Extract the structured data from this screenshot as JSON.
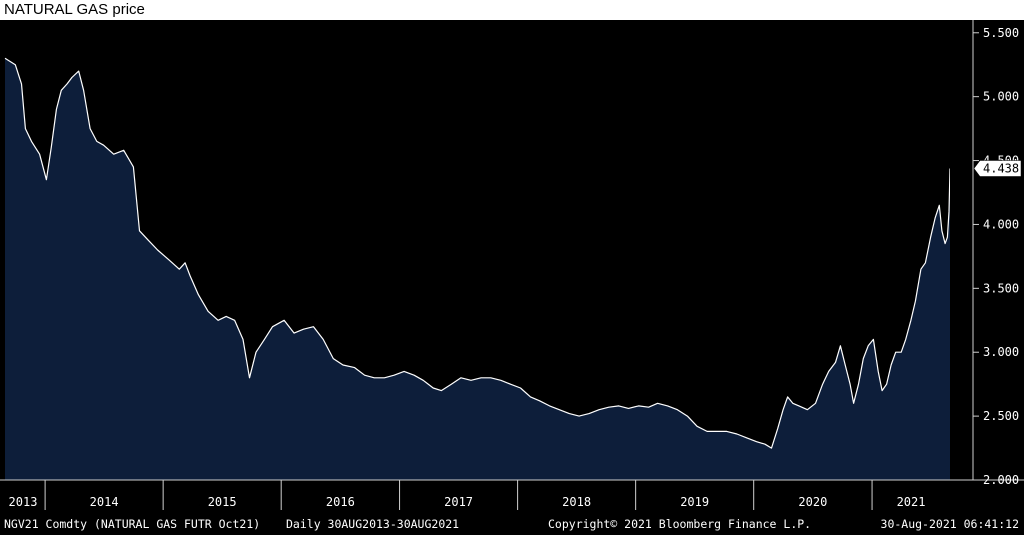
{
  "title": "NATURAL GAS price",
  "chart_data": {
    "type": "area",
    "x_range": [
      "2013-08-30",
      "2021-08-30"
    ],
    "ylim": [
      2.0,
      5.6
    ],
    "grid": false,
    "series_color": "#ffffff",
    "area_color": "#0d1e3a",
    "y_ticks": [
      "2.000",
      "2.500",
      "3.000",
      "3.500",
      "4.000",
      "4.500",
      "5.000",
      "5.500"
    ],
    "x_ticks": [
      "2013",
      "2014",
      "2015",
      "2016",
      "2017",
      "2018",
      "2019",
      "2020",
      "2021"
    ],
    "last_value_label": "4.438",
    "last_value": 4.438,
    "points": [
      [
        "2013-08-30",
        5.3
      ],
      [
        "2013-10-01",
        5.25
      ],
      [
        "2013-10-20",
        5.1
      ],
      [
        "2013-11-01",
        4.75
      ],
      [
        "2013-11-20",
        4.65
      ],
      [
        "2013-12-15",
        4.55
      ],
      [
        "2014-01-05",
        4.35
      ],
      [
        "2014-01-20",
        4.6
      ],
      [
        "2014-02-05",
        4.9
      ],
      [
        "2014-02-20",
        5.05
      ],
      [
        "2014-03-10",
        5.1
      ],
      [
        "2014-03-25",
        5.15
      ],
      [
        "2014-04-15",
        5.2
      ],
      [
        "2014-04-30",
        5.05
      ],
      [
        "2014-05-20",
        4.75
      ],
      [
        "2014-06-10",
        4.65
      ],
      [
        "2014-07-01",
        4.62
      ],
      [
        "2014-08-01",
        4.55
      ],
      [
        "2014-09-01",
        4.58
      ],
      [
        "2014-10-01",
        4.45
      ],
      [
        "2014-10-20",
        3.95
      ],
      [
        "2014-11-15",
        3.88
      ],
      [
        "2014-12-15",
        3.8
      ],
      [
        "2015-01-20",
        3.72
      ],
      [
        "2015-02-20",
        3.65
      ],
      [
        "2015-03-10",
        3.7
      ],
      [
        "2015-03-25",
        3.6
      ],
      [
        "2015-04-20",
        3.45
      ],
      [
        "2015-05-20",
        3.32
      ],
      [
        "2015-06-20",
        3.25
      ],
      [
        "2015-07-15",
        3.28
      ],
      [
        "2015-08-10",
        3.25
      ],
      [
        "2015-09-05",
        3.1
      ],
      [
        "2015-09-25",
        2.8
      ],
      [
        "2015-10-15",
        3.0
      ],
      [
        "2015-11-10",
        3.1
      ],
      [
        "2015-12-05",
        3.2
      ],
      [
        "2016-01-10",
        3.25
      ],
      [
        "2016-02-10",
        3.15
      ],
      [
        "2016-03-10",
        3.18
      ],
      [
        "2016-04-10",
        3.2
      ],
      [
        "2016-05-10",
        3.1
      ],
      [
        "2016-06-10",
        2.95
      ],
      [
        "2016-07-10",
        2.9
      ],
      [
        "2016-08-15",
        2.88
      ],
      [
        "2016-09-15",
        2.82
      ],
      [
        "2016-10-15",
        2.8
      ],
      [
        "2016-11-15",
        2.8
      ],
      [
        "2016-12-15",
        2.82
      ],
      [
        "2017-01-15",
        2.85
      ],
      [
        "2017-02-15",
        2.82
      ],
      [
        "2017-03-15",
        2.78
      ],
      [
        "2017-04-15",
        2.72
      ],
      [
        "2017-05-10",
        2.7
      ],
      [
        "2017-06-10",
        2.75
      ],
      [
        "2017-07-10",
        2.8
      ],
      [
        "2017-08-10",
        2.78
      ],
      [
        "2017-09-10",
        2.8
      ],
      [
        "2017-10-10",
        2.8
      ],
      [
        "2017-11-10",
        2.78
      ],
      [
        "2017-12-10",
        2.75
      ],
      [
        "2018-01-10",
        2.72
      ],
      [
        "2018-02-10",
        2.65
      ],
      [
        "2018-03-10",
        2.62
      ],
      [
        "2018-04-10",
        2.58
      ],
      [
        "2018-05-10",
        2.55
      ],
      [
        "2018-06-10",
        2.52
      ],
      [
        "2018-07-10",
        2.5
      ],
      [
        "2018-08-10",
        2.52
      ],
      [
        "2018-09-10",
        2.55
      ],
      [
        "2018-10-10",
        2.57
      ],
      [
        "2018-11-10",
        2.58
      ],
      [
        "2018-12-10",
        2.56
      ],
      [
        "2019-01-10",
        2.58
      ],
      [
        "2019-02-10",
        2.57
      ],
      [
        "2019-03-10",
        2.6
      ],
      [
        "2019-04-10",
        2.58
      ],
      [
        "2019-05-10",
        2.55
      ],
      [
        "2019-06-10",
        2.5
      ],
      [
        "2019-07-10",
        2.42
      ],
      [
        "2019-08-10",
        2.38
      ],
      [
        "2019-09-10",
        2.38
      ],
      [
        "2019-10-10",
        2.38
      ],
      [
        "2019-11-10",
        2.36
      ],
      [
        "2019-12-10",
        2.33
      ],
      [
        "2020-01-10",
        2.3
      ],
      [
        "2020-02-05",
        2.28
      ],
      [
        "2020-02-25",
        2.25
      ],
      [
        "2020-03-15",
        2.4
      ],
      [
        "2020-04-01",
        2.55
      ],
      [
        "2020-04-15",
        2.65
      ],
      [
        "2020-05-01",
        2.6
      ],
      [
        "2020-05-20",
        2.58
      ],
      [
        "2020-06-15",
        2.55
      ],
      [
        "2020-07-10",
        2.6
      ],
      [
        "2020-08-01",
        2.75
      ],
      [
        "2020-08-20",
        2.85
      ],
      [
        "2020-09-10",
        2.92
      ],
      [
        "2020-09-25",
        3.05
      ],
      [
        "2020-10-10",
        2.9
      ],
      [
        "2020-10-25",
        2.75
      ],
      [
        "2020-11-05",
        2.6
      ],
      [
        "2020-11-20",
        2.75
      ],
      [
        "2020-12-05",
        2.95
      ],
      [
        "2020-12-20",
        3.05
      ],
      [
        "2021-01-05",
        3.1
      ],
      [
        "2021-01-20",
        2.85
      ],
      [
        "2021-02-01",
        2.7
      ],
      [
        "2021-02-15",
        2.75
      ],
      [
        "2021-03-01",
        2.9
      ],
      [
        "2021-03-15",
        3.0
      ],
      [
        "2021-04-01",
        3.0
      ],
      [
        "2021-04-15",
        3.1
      ],
      [
        "2021-05-01",
        3.25
      ],
      [
        "2021-05-15",
        3.4
      ],
      [
        "2021-06-01",
        3.65
      ],
      [
        "2021-06-15",
        3.7
      ],
      [
        "2021-07-01",
        3.9
      ],
      [
        "2021-07-15",
        4.05
      ],
      [
        "2021-07-28",
        4.15
      ],
      [
        "2021-08-05",
        3.95
      ],
      [
        "2021-08-15",
        3.85
      ],
      [
        "2021-08-22",
        3.9
      ],
      [
        "2021-08-27",
        4.1
      ],
      [
        "2021-08-30",
        4.438
      ]
    ]
  },
  "footer": {
    "ticker": "NGV21 Comdty (NATURAL GAS FUTR  Oct21)",
    "range": "Daily 30AUG2013-30AUG2021",
    "copyright": "Copyright© 2021 Bloomberg Finance L.P.",
    "timestamp": "30-Aug-2021 06:41:12"
  }
}
